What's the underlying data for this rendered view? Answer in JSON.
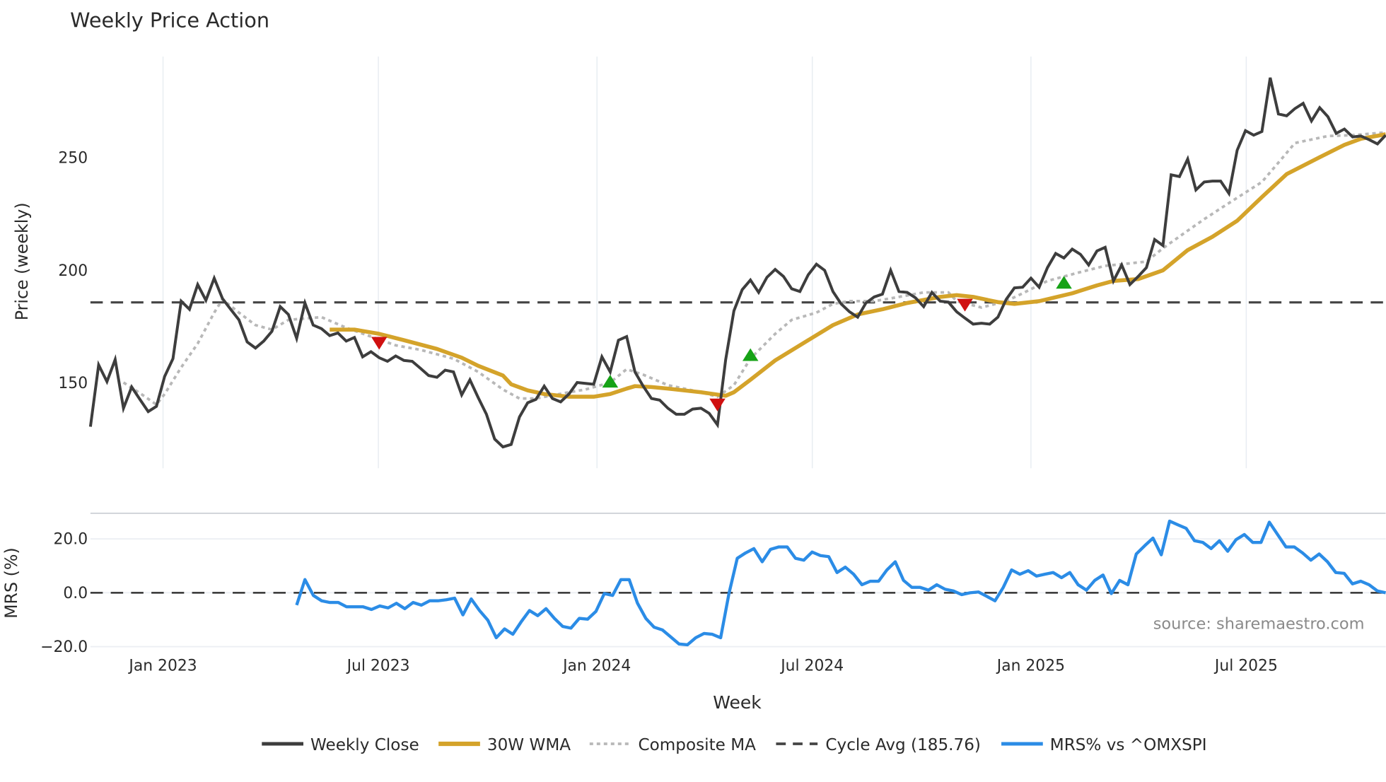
{
  "title": "Weekly Price Action",
  "source": "source: sharemaestro.com",
  "colors": {
    "close": "#3d3d3d",
    "wma": "#d4a32a",
    "composite": "#b8b8b8",
    "cycle": "#444444",
    "mrs": "#2b8ce6",
    "signal_up": "#16a216",
    "signal_down": "#d01010",
    "grid": "#e8edf2"
  },
  "legend": [
    {
      "key": "close",
      "label": "Weekly Close"
    },
    {
      "key": "wma",
      "label": "30W WMA"
    },
    {
      "key": "composite",
      "label": "Composite MA"
    },
    {
      "key": "cycle",
      "label": "Cycle Avg (185.76)"
    },
    {
      "key": "mrs",
      "label": "MRS% vs ^OMXSPI"
    }
  ],
  "chart_data": [
    {
      "type": "line",
      "title": "Weekly Price Action",
      "xlabel": "Week",
      "ylabel": "Price (weekly)",
      "x_tick_labels": [
        "Jan 2023",
        "Jul 2023",
        "Jan 2024",
        "Jul 2024",
        "Jan 2025",
        "Jul 2025"
      ],
      "x_tick_weeks": [
        8.8,
        34.9,
        61.4,
        87.5,
        114.0,
        140.1
      ],
      "y_ticks": [
        150,
        200,
        250
      ],
      "ylim": [
        119,
        291
      ],
      "x_range_weeks": [
        0,
        157
      ],
      "grid": true,
      "legend_position": "bottom",
      "cycle_avg": 185.76,
      "series": [
        {
          "name": "Weekly Close",
          "x_mode": "uniform",
          "values": [
            130.6,
            158.0,
            150.6,
            160.4,
            138.8,
            148.2,
            142.7,
            137.3,
            139.6,
            152.9,
            160.8,
            186.3,
            182.7,
            193.7,
            186.7,
            196.5,
            187.5,
            182.7,
            178.0,
            168.2,
            165.5,
            168.6,
            172.9,
            183.9,
            180.4,
            169.8,
            185.5,
            175.7,
            174.1,
            171.0,
            172.2,
            168.6,
            170.2,
            161.6,
            163.9,
            161.2,
            159.6,
            162.0,
            160.0,
            159.6,
            156.5,
            153.3,
            152.5,
            155.7,
            154.9,
            144.7,
            151.4,
            143.5,
            136.1,
            125.1,
            121.6,
            122.7,
            134.9,
            141.2,
            142.7,
            148.6,
            143.1,
            141.6,
            145.1,
            150.2,
            149.8,
            149.4,
            161.6,
            154.9,
            169.0,
            170.6,
            154.9,
            148.6,
            143.1,
            142.4,
            138.8,
            136.1,
            136.1,
            138.4,
            138.8,
            136.5,
            131.4,
            160.4,
            182.0,
            191.4,
            195.7,
            190.2,
            196.9,
            200.4,
            197.3,
            191.8,
            190.6,
            198.0,
            202.7,
            200.0,
            190.6,
            185.1,
            181.6,
            179.2,
            185.5,
            188.2,
            189.4,
            200.0,
            190.6,
            190.2,
            187.8,
            183.9,
            190.2,
            186.3,
            185.9,
            181.6,
            178.8,
            176.1,
            176.5,
            176.1,
            179.2,
            187.1,
            192.2,
            192.5,
            196.5,
            192.5,
            201.2,
            207.5,
            205.5,
            209.4,
            207.1,
            202.4,
            208.6,
            210.2,
            195.3,
            202.4,
            193.7,
            197.3,
            201.2,
            213.7,
            211.0,
            242.4,
            241.6,
            249.4,
            235.7,
            239.2,
            239.6,
            239.6,
            234.1,
            253.3,
            262.0,
            260.0,
            261.6,
            285.5,
            269.4,
            268.6,
            271.8,
            274.1,
            266.3,
            272.2,
            268.2,
            260.8,
            262.7,
            259.2,
            259.6,
            258.0,
            256.1,
            260.0
          ]
        },
        {
          "name": "30W WMA",
          "weeks": [
            29,
            32,
            35,
            38,
            42,
            45,
            47,
            50,
            51,
            53,
            55,
            58,
            61,
            63,
            65,
            66,
            68,
            70,
            74,
            77,
            78,
            80,
            83,
            87,
            90,
            93,
            96,
            99,
            103,
            105,
            107,
            110,
            112,
            115,
            119,
            122,
            124,
            127,
            130,
            133,
            136,
            139,
            142,
            145,
            149,
            152,
            154,
            157
          ],
          "values": [
            173.7,
            173.7,
            171.8,
            169.0,
            165.1,
            161.2,
            157.6,
            153.3,
            149.4,
            146.7,
            145.1,
            143.9,
            143.9,
            145.1,
            147.5,
            148.6,
            148.2,
            147.5,
            145.9,
            144.3,
            145.9,
            151.4,
            160.0,
            169.0,
            175.7,
            180.4,
            182.7,
            185.5,
            188.2,
            189.0,
            188.2,
            185.9,
            185.1,
            186.3,
            189.8,
            193.3,
            195.3,
            196.1,
            200.0,
            209.0,
            214.9,
            222.0,
            232.5,
            242.7,
            250.2,
            255.7,
            258.4,
            260.4
          ]
        },
        {
          "name": "Composite MA",
          "weeks": [
            4,
            6,
            8,
            9,
            11,
            13,
            15,
            16,
            18,
            20,
            22,
            24,
            28,
            31,
            34,
            37,
            40,
            44,
            47,
            50,
            52,
            54,
            58,
            60,
            63,
            65,
            67,
            70,
            74,
            76,
            78,
            80,
            83,
            85,
            88,
            90,
            92,
            95,
            98,
            101,
            104,
            105,
            108,
            111,
            113,
            116,
            120,
            123,
            125,
            128,
            130,
            133,
            135,
            137,
            139,
            142,
            144,
            146,
            150,
            153,
            157
          ],
          "values": [
            150.2,
            145.5,
            140.4,
            145.1,
            156.9,
            167.5,
            181.2,
            187.1,
            181.2,
            175.7,
            173.7,
            178.0,
            179.2,
            174.5,
            170.6,
            166.7,
            164.7,
            160.8,
            154.9,
            147.1,
            143.1,
            143.1,
            145.9,
            147.1,
            150.2,
            156.1,
            153.7,
            149.0,
            145.9,
            143.9,
            149.0,
            160.8,
            171.8,
            178.0,
            181.2,
            185.1,
            186.3,
            186.3,
            188.2,
            190.2,
            190.2,
            186.3,
            183.5,
            186.3,
            189.8,
            195.3,
            199.2,
            202.0,
            202.7,
            203.9,
            209.8,
            217.6,
            222.7,
            227.5,
            232.2,
            239.2,
            247.8,
            256.5,
            259.6,
            260.0,
            261.2
          ]
        },
        {
          "name": "Cycle Avg (185.76)",
          "constant": 185.76
        }
      ],
      "signals": [
        {
          "type": "sell",
          "week": 35,
          "value": 167.8
        },
        {
          "type": "buy",
          "week": 63,
          "value": 150.6
        },
        {
          "type": "sell",
          "week": 76,
          "value": 140.4
        },
        {
          "type": "buy",
          "week": 80,
          "value": 162.4
        },
        {
          "type": "sell",
          "week": 106,
          "value": 184.7
        },
        {
          "type": "buy",
          "week": 118,
          "value": 194.5
        }
      ]
    },
    {
      "type": "line",
      "title": "",
      "xlabel": "Week",
      "ylabel": "MRS (%)",
      "y_ticks": [
        -20.0,
        0.0,
        20.0
      ],
      "y_tick_labels": [
        "−20.0",
        "0.0",
        "20.0"
      ],
      "ylim": [
        -20.0,
        29.5
      ],
      "reference_line": 0.0,
      "series": [
        {
          "name": "MRS% vs ^OMXSPI",
          "start_week": 25,
          "end_week": 157,
          "values": [
            -4.6,
            4.9,
            -1.0,
            -3.0,
            -3.6,
            -3.6,
            -5.2,
            -5.2,
            -5.2,
            -6.2,
            -4.9,
            -5.6,
            -3.9,
            -5.9,
            -3.6,
            -4.6,
            -3.0,
            -3.0,
            -2.6,
            -2.0,
            -8.2,
            -2.3,
            -6.6,
            -10.2,
            -16.7,
            -13.4,
            -15.4,
            -10.8,
            -6.6,
            -8.5,
            -5.9,
            -9.5,
            -12.5,
            -13.1,
            -9.5,
            -9.8,
            -6.9,
            -0.3,
            -1.0,
            4.9,
            4.9,
            -3.9,
            -9.5,
            -12.8,
            -13.8,
            -16.4,
            -19.0,
            -19.3,
            -16.7,
            -15.1,
            -15.4,
            -16.7,
            -0.3,
            12.8,
            14.8,
            16.4,
            11.5,
            16.1,
            17.0,
            17.0,
            12.8,
            12.1,
            15.1,
            13.8,
            13.4,
            7.5,
            9.5,
            6.9,
            3.0,
            4.3,
            4.3,
            8.5,
            11.5,
            4.6,
            2.0,
            2.0,
            1.0,
            3.0,
            1.3,
            0.7,
            -0.7,
            0.0,
            0.3,
            -1.3,
            -3.0,
            2.0,
            8.5,
            6.9,
            8.2,
            6.2,
            6.9,
            7.5,
            5.6,
            7.5,
            3.0,
            1.0,
            4.6,
            6.6,
            -0.3,
            4.6,
            3.0,
            14.4,
            17.4,
            20.3,
            14.1,
            26.6,
            25.2,
            23.9,
            19.3,
            18.7,
            16.4,
            19.3,
            15.4,
            19.7,
            21.6,
            18.7,
            18.7,
            26.2,
            21.6,
            17.0,
            17.0,
            14.8,
            12.1,
            14.4,
            11.5,
            7.5,
            7.2,
            3.3,
            4.3,
            3.0,
            0.7,
            0.0
          ]
        }
      ]
    }
  ]
}
